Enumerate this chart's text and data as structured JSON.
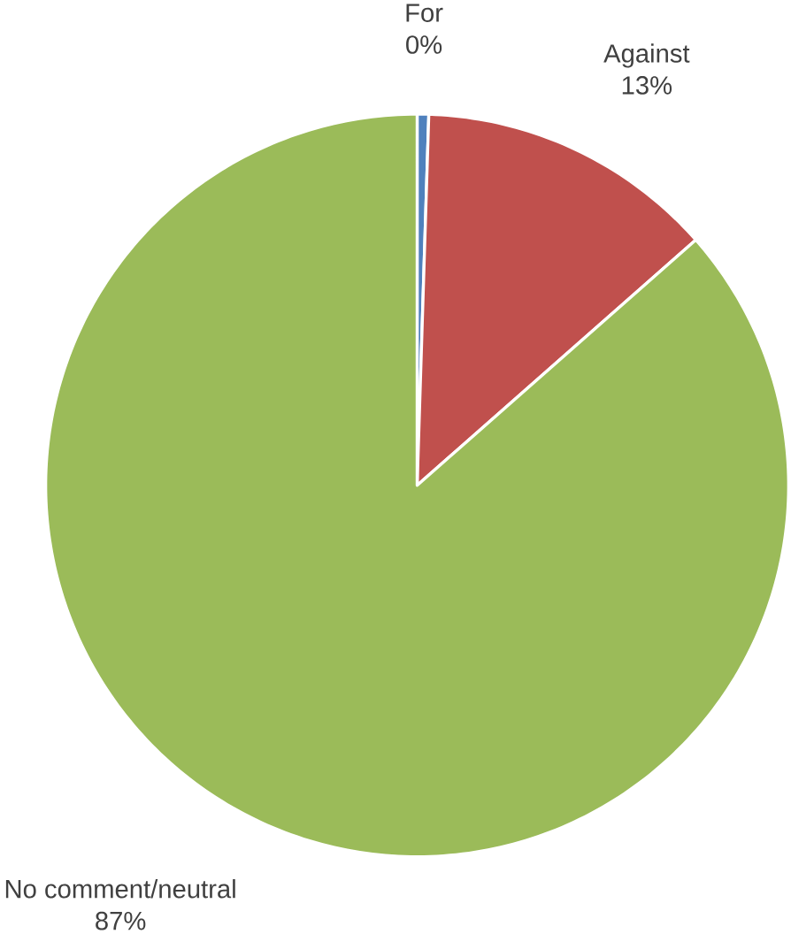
{
  "chart_data": {
    "type": "pie",
    "categories": [
      "For",
      "Against",
      "No comment/neutral"
    ],
    "values": [
      0.5,
      13,
      86.5
    ],
    "value_labels": [
      "0%",
      "13%",
      "87%"
    ],
    "colors": [
      "#4f81bd",
      "#c0504d",
      "#9bbb59"
    ]
  }
}
